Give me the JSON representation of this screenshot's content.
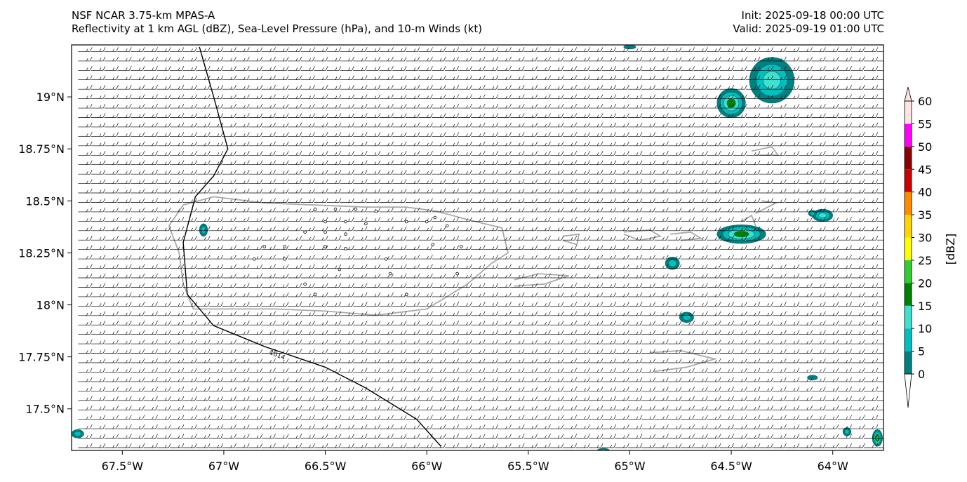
{
  "header": {
    "left_line1": "NSF NCAR 3.75-km MPAS-A",
    "left_line2": "Reflectivity at 1 km AGL (dBZ), Sea-Level Pressure (hPa), and 10-m Winds (kt)",
    "right_line1": "Init: 2025-09-18 00:00 UTC",
    "right_line2": "Valid: 2025-09-19 01:00 UTC"
  },
  "map": {
    "lon_range": [
      -67.75,
      -63.75
    ],
    "lat_range": [
      17.3,
      19.25
    ],
    "lon_ticks": [
      {
        "value": -67.5,
        "label": "67.5°W"
      },
      {
        "value": -67.0,
        "label": "67°W"
      },
      {
        "value": -66.5,
        "label": "66.5°W"
      },
      {
        "value": -66.0,
        "label": "66°W"
      },
      {
        "value": -65.5,
        "label": "65.5°W"
      },
      {
        "value": -65.0,
        "label": "65°W"
      },
      {
        "value": -64.5,
        "label": "64.5°W"
      },
      {
        "value": -64.0,
        "label": "64°W"
      }
    ],
    "lat_ticks": [
      {
        "value": 19.0,
        "label": "19°N"
      },
      {
        "value": 18.75,
        "label": "18.75°N"
      },
      {
        "value": 18.5,
        "label": "18.5°N"
      },
      {
        "value": 18.25,
        "label": "18.25°N"
      },
      {
        "value": 18.0,
        "label": "18°N"
      },
      {
        "value": 17.75,
        "label": "17.75°N"
      },
      {
        "value": 17.5,
        "label": "17.5°N"
      }
    ],
    "isobar": {
      "label": "1014",
      "points": [
        [
          -67.12,
          19.24
        ],
        [
          -67.05,
          19.0
        ],
        [
          -66.98,
          18.75
        ],
        [
          -67.05,
          18.62
        ],
        [
          -67.14,
          18.52
        ],
        [
          -67.2,
          18.3
        ],
        [
          -67.18,
          18.05
        ],
        [
          -67.05,
          17.9
        ],
        [
          -66.8,
          17.8
        ],
        [
          -66.5,
          17.7
        ],
        [
          -66.3,
          17.6
        ],
        [
          -66.05,
          17.45
        ],
        [
          -65.93,
          17.32
        ]
      ]
    },
    "coast_color": "#aaaaaa",
    "coastlines": [
      [
        [
          -67.27,
          18.38
        ],
        [
          -67.2,
          18.48
        ],
        [
          -67.05,
          18.52
        ],
        [
          -66.8,
          18.49
        ],
        [
          -66.55,
          18.48
        ],
        [
          -66.3,
          18.47
        ],
        [
          -66.1,
          18.47
        ],
        [
          -65.95,
          18.45
        ],
        [
          -65.8,
          18.41
        ],
        [
          -65.63,
          18.37
        ],
        [
          -65.6,
          18.25
        ],
        [
          -65.68,
          18.2
        ],
        [
          -65.8,
          18.1
        ],
        [
          -66.0,
          17.98
        ],
        [
          -66.25,
          17.95
        ],
        [
          -66.5,
          17.97
        ],
        [
          -66.75,
          17.98
        ],
        [
          -67.0,
          17.98
        ],
        [
          -67.15,
          17.98
        ],
        [
          -67.2,
          18.1
        ],
        [
          -67.22,
          18.25
        ],
        [
          -67.27,
          18.38
        ]
      ],
      [
        [
          -65.57,
          18.12
        ],
        [
          -65.45,
          18.15
        ],
        [
          -65.3,
          18.14
        ],
        [
          -65.42,
          18.1
        ],
        [
          -65.57,
          18.09
        ]
      ],
      [
        [
          -65.33,
          18.33
        ],
        [
          -65.25,
          18.34
        ],
        [
          -65.26,
          18.29
        ],
        [
          -65.33,
          18.31
        ]
      ],
      [
        [
          -65.03,
          18.35
        ],
        [
          -64.9,
          18.36
        ],
        [
          -64.85,
          18.33
        ],
        [
          -64.95,
          18.31
        ],
        [
          -65.03,
          18.34
        ]
      ],
      [
        [
          -64.8,
          18.34
        ],
        [
          -64.7,
          18.35
        ],
        [
          -64.65,
          18.32
        ],
        [
          -64.75,
          18.31
        ]
      ],
      [
        [
          -64.9,
          17.77
        ],
        [
          -64.75,
          17.78
        ],
        [
          -64.58,
          17.74
        ],
        [
          -64.72,
          17.7
        ],
        [
          -64.88,
          17.68
        ]
      ],
      [
        [
          -64.38,
          18.44
        ],
        [
          -64.28,
          18.49
        ],
        [
          -64.35,
          18.5
        ]
      ],
      [
        [
          -64.4,
          18.74
        ],
        [
          -64.3,
          18.76
        ],
        [
          -64.27,
          18.72
        ],
        [
          -64.38,
          18.72
        ]
      ],
      [
        [
          -64.45,
          18.4
        ],
        [
          -64.4,
          18.43
        ],
        [
          -64.38,
          18.38
        ]
      ]
    ],
    "stations": [
      [
        -66.55,
        18.46
      ],
      [
        -66.45,
        18.46
      ],
      [
        -66.35,
        18.46
      ],
      [
        -66.25,
        18.45
      ],
      [
        -66.5,
        18.4
      ],
      [
        -66.4,
        18.4
      ],
      [
        -66.3,
        18.39
      ],
      [
        -66.6,
        18.35
      ],
      [
        -66.5,
        18.35
      ],
      [
        -66.4,
        18.34
      ],
      [
        -66.7,
        18.28
      ],
      [
        -66.8,
        18.28
      ],
      [
        -66.5,
        18.28
      ],
      [
        -66.4,
        18.27
      ],
      [
        -65.97,
        18.29
      ],
      [
        -66.1,
        18.4
      ],
      [
        -66.0,
        18.4
      ],
      [
        -65.9,
        18.38
      ],
      [
        -66.85,
        18.22
      ],
      [
        -66.7,
        18.22
      ],
      [
        -66.2,
        18.22
      ],
      [
        -65.83,
        18.28
      ],
      [
        -66.43,
        18.17
      ],
      [
        -66.18,
        18.15
      ],
      [
        -66.1,
        18.05
      ],
      [
        -65.85,
        18.15
      ],
      [
        -66.6,
        18.1
      ],
      [
        -66.55,
        18.05
      ],
      [
        -65.96,
        18.42
      ]
    ],
    "reflectivity_cells": [
      {
        "lon": -64.3,
        "lat": 19.08,
        "rx": 0.11,
        "ry": 0.11,
        "level": 15
      },
      {
        "lon": -64.5,
        "lat": 18.97,
        "rx": 0.07,
        "ry": 0.07,
        "level": 20
      },
      {
        "lon": -64.45,
        "lat": 18.34,
        "rx": 0.12,
        "ry": 0.045,
        "level": 20
      },
      {
        "lon": -64.05,
        "lat": 18.43,
        "rx": 0.05,
        "ry": 0.03,
        "level": 15
      },
      {
        "lon": -64.1,
        "lat": 18.44,
        "rx": 0.02,
        "ry": 0.015,
        "level": 10
      },
      {
        "lon": -64.79,
        "lat": 18.2,
        "rx": 0.035,
        "ry": 0.03,
        "level": 10
      },
      {
        "lon": -64.72,
        "lat": 17.94,
        "rx": 0.035,
        "ry": 0.025,
        "level": 10
      },
      {
        "lon": -64.1,
        "lat": 17.65,
        "rx": 0.025,
        "ry": 0.012,
        "level": 5
      },
      {
        "lon": -67.1,
        "lat": 18.36,
        "rx": 0.02,
        "ry": 0.03,
        "level": 10
      },
      {
        "lon": -67.72,
        "lat": 17.38,
        "rx": 0.03,
        "ry": 0.02,
        "level": 10
      },
      {
        "lon": -63.93,
        "lat": 17.39,
        "rx": 0.02,
        "ry": 0.02,
        "level": 10
      },
      {
        "lon": -63.78,
        "lat": 17.36,
        "rx": 0.025,
        "ry": 0.04,
        "level": 25
      },
      {
        "lon": -65.13,
        "lat": 17.3,
        "rx": 0.03,
        "ry": 0.01,
        "level": 10
      },
      {
        "lon": -65.0,
        "lat": 19.24,
        "rx": 0.03,
        "ry": 0.01,
        "level": 5
      }
    ]
  },
  "colorbar": {
    "label": "[dBZ]",
    "levels": [
      {
        "value": 0,
        "label": "0",
        "color": "#ffffff"
      },
      {
        "value": 5,
        "label": "5",
        "color": "#008080"
      },
      {
        "value": 10,
        "label": "10",
        "color": "#00bfbf"
      },
      {
        "value": 15,
        "label": "15",
        "color": "#40e0d0"
      },
      {
        "value": 20,
        "label": "20",
        "color": "#008000"
      },
      {
        "value": 25,
        "label": "25",
        "color": "#32cd32"
      },
      {
        "value": 30,
        "label": "30",
        "color": "#ffff00"
      },
      {
        "value": 35,
        "label": "35",
        "color": "#ffd700"
      },
      {
        "value": 40,
        "label": "40",
        "color": "#ff8c00"
      },
      {
        "value": 45,
        "label": "45",
        "color": "#cc0000"
      },
      {
        "value": 50,
        "label": "50",
        "color": "#8b0000"
      },
      {
        "value": 55,
        "label": "55",
        "color": "#ff00ff"
      },
      {
        "value": 60,
        "label": "60",
        "color": "#ffe4e1"
      }
    ]
  }
}
